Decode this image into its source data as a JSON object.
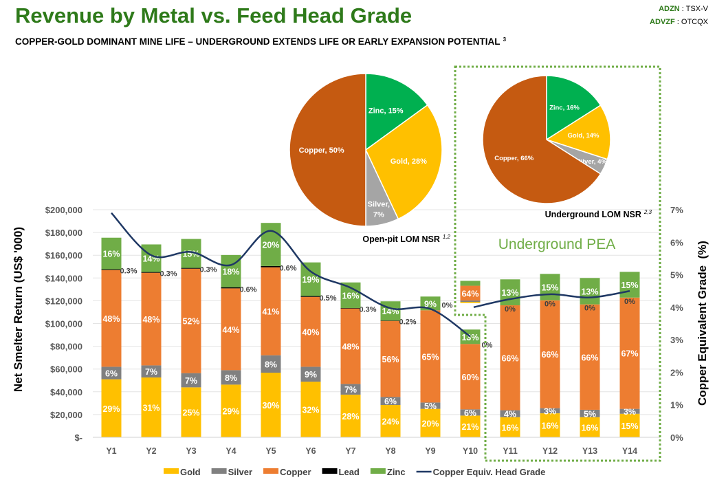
{
  "header": {
    "title": "Revenue by Metal vs. Feed Head Grade",
    "subtitle": "COPPER-GOLD DOMINANT MINE LIFE – UNDERGROUND EXTENDS LIFE OR EARLY EXPANSION POTENTIAL",
    "subtitle_note": "3",
    "ticker1_symbol": "ADZN",
    "ticker1_exchange": " : TSX-V",
    "ticker2_symbol": "ADVZF",
    "ticker2_exchange": " : OTCQX"
  },
  "colors": {
    "title": "#2E7A1A",
    "gold": "#FFC000",
    "silver": "#808080",
    "copper": "#ED7D31",
    "lead": "#000000",
    "zinc": "#70AD47",
    "line": "#1F3864",
    "pie_copper": "#C55A11",
    "pie_zinc": "#00B050",
    "pie_gold": "#FFC000",
    "pie_silver": "#A5A5A5",
    "box": "#70AD47"
  },
  "chart_data": [
    {
      "type": "bar",
      "stacked": true,
      "title": "Revenue by Metal vs. Feed Head Grade",
      "ylabel": "Net Smelter Return (US$ '000)",
      "y2label": "Copper Equivalent Grade  (%)",
      "ylim": [
        0,
        200000
      ],
      "y2lim": [
        0,
        7
      ],
      "yticks": [
        "$-",
        "$20,000",
        "$40,000",
        "$60,000",
        "$80,000",
        "$100,000",
        "$120,000",
        "$140,000",
        "$160,000",
        "$180,000",
        "$200,000"
      ],
      "y2ticks": [
        "0%",
        "1%",
        "2%",
        "3%",
        "4%",
        "5%",
        "6%",
        "7%"
      ],
      "categories": [
        "Y1",
        "Y2",
        "Y3",
        "Y4",
        "Y5",
        "Y6",
        "Y7",
        "Y8",
        "Y9",
        "Y10",
        "Y11",
        "Y12",
        "Y13",
        "Y14"
      ],
      "series": [
        {
          "name": "Gold",
          "key": "gold",
          "values": [
            51000,
            52600,
            43900,
            46300,
            56800,
            48900,
            37500,
            28400,
            25000,
            19100,
            17700,
            21100,
            17700,
            20700
          ],
          "labels": [
            "29%",
            "31%",
            "25%",
            "29%",
            "30%",
            "32%",
            "28%",
            "24%",
            "20%",
            "21%",
            "16%",
            "16%",
            "16%",
            "15%"
          ]
        },
        {
          "name": "Silver",
          "key": "silver",
          "values": [
            11000,
            10600,
            12500,
            12700,
            15300,
            13100,
            9400,
            7100,
            5600,
            5500,
            6100,
            4500,
            6500,
            4300
          ],
          "labels": [
            "6%",
            "7%",
            "7%",
            "8%",
            "8%",
            "9%",
            "7%",
            "6%",
            "5%",
            "6%",
            "4%",
            "3%",
            "5%",
            "3%"
          ]
        },
        {
          "name": "Copper",
          "key": "copper",
          "values": [
            85000,
            81400,
            91800,
            71900,
            77300,
            61400,
            66300,
            66800,
            81000,
            57400,
            92200,
            94800,
            92600,
            97800
          ],
          "labels": [
            "48%",
            "48%",
            "52%",
            "44%",
            "41%",
            "40%",
            "48%",
            "56%",
            "65%",
            "60%",
            "66%",
            "66%",
            "66%",
            "67%"
          ]
        },
        {
          "name": "Lead",
          "key": "lead",
          "values": [
            600,
            600,
            600,
            900,
            1100,
            700,
            400,
            300,
            0,
            0,
            0,
            0,
            0,
            0
          ],
          "labels": [
            "0.3%",
            "0.3%",
            "0.3%",
            "0.6%",
            "0.6%",
            "0.5%",
            "0.3%",
            "0.2%",
            "0%",
            "0%",
            "0%",
            "0%",
            "0%",
            "0%"
          ]
        },
        {
          "name": "Zinc",
          "key": "zinc",
          "values": [
            27800,
            24300,
            25500,
            28400,
            37900,
            29600,
            22500,
            16900,
            12100,
            12700,
            22800,
            23200,
            23200,
            22600
          ],
          "labels": [
            "16%",
            "14%",
            "15%",
            "18%",
            "20%",
            "19%",
            "16%",
            "14%",
            "9%",
            "13%",
            "13%",
            "15%",
            "13%",
            "15%"
          ]
        }
      ],
      "y10_underground_bar": {
        "base": 118000,
        "gold": 1000,
        "silver": 1200,
        "copper": 13000,
        "zinc": 4300,
        "copper_label": "64%"
      },
      "line_series": [
        {
          "name": "Copper Equiv. Head Grade",
          "categories": [
            "Y1",
            "Y2",
            "Y3",
            "Y4",
            "Y5",
            "Y6",
            "Y7",
            "Y8",
            "Y9",
            "Y10"
          ],
          "values": [
            6.9,
            5.6,
            5.7,
            5.3,
            6.35,
            5.1,
            4.6,
            3.97,
            3.95,
            3.1
          ]
        },
        {
          "name": "Copper Equiv. Head Grade (Underground)",
          "categories": [
            "Y10",
            "Y11",
            "Y12",
            "Y13",
            "Y14"
          ],
          "values": [
            4.0,
            4.25,
            4.4,
            4.3,
            4.5
          ]
        }
      ],
      "legend": [
        "Gold",
        "Silver",
        "Copper",
        "Lead",
        "Zinc",
        "Copper Equiv. Head Grade"
      ],
      "legend_position": "bottom",
      "grid": true,
      "annotation": "Underground PEA"
    },
    {
      "type": "pie",
      "title": "Open-pit LOM NSR",
      "title_note": "1,2",
      "slices": [
        {
          "name": "Zinc",
          "value": 15,
          "label": "Zinc, 15%",
          "color_key": "pie_zinc"
        },
        {
          "name": "Gold",
          "value": 28,
          "label": "Gold, 28%",
          "color_key": "pie_gold"
        },
        {
          "name": "Silver",
          "value": 7,
          "label": "Silver,",
          "label2": "7%",
          "color_key": "pie_silver"
        },
        {
          "name": "Copper",
          "value": 50,
          "label": "Copper, 50%",
          "color_key": "pie_copper"
        }
      ]
    },
    {
      "type": "pie",
      "title": "Underground LOM NSR",
      "title_note": "2,3",
      "slices": [
        {
          "name": "Zinc",
          "value": 16,
          "label": "Zinc, 16%",
          "color_key": "pie_zinc"
        },
        {
          "name": "Gold",
          "value": 14,
          "label": "Gold, 14%",
          "color_key": "pie_gold"
        },
        {
          "name": "Silver",
          "value": 4,
          "label": "Silver, 4%",
          "color_key": "pie_silver"
        },
        {
          "name": "Copper",
          "value": 66,
          "label": "Copper, 66%",
          "color_key": "pie_copper"
        }
      ]
    }
  ]
}
